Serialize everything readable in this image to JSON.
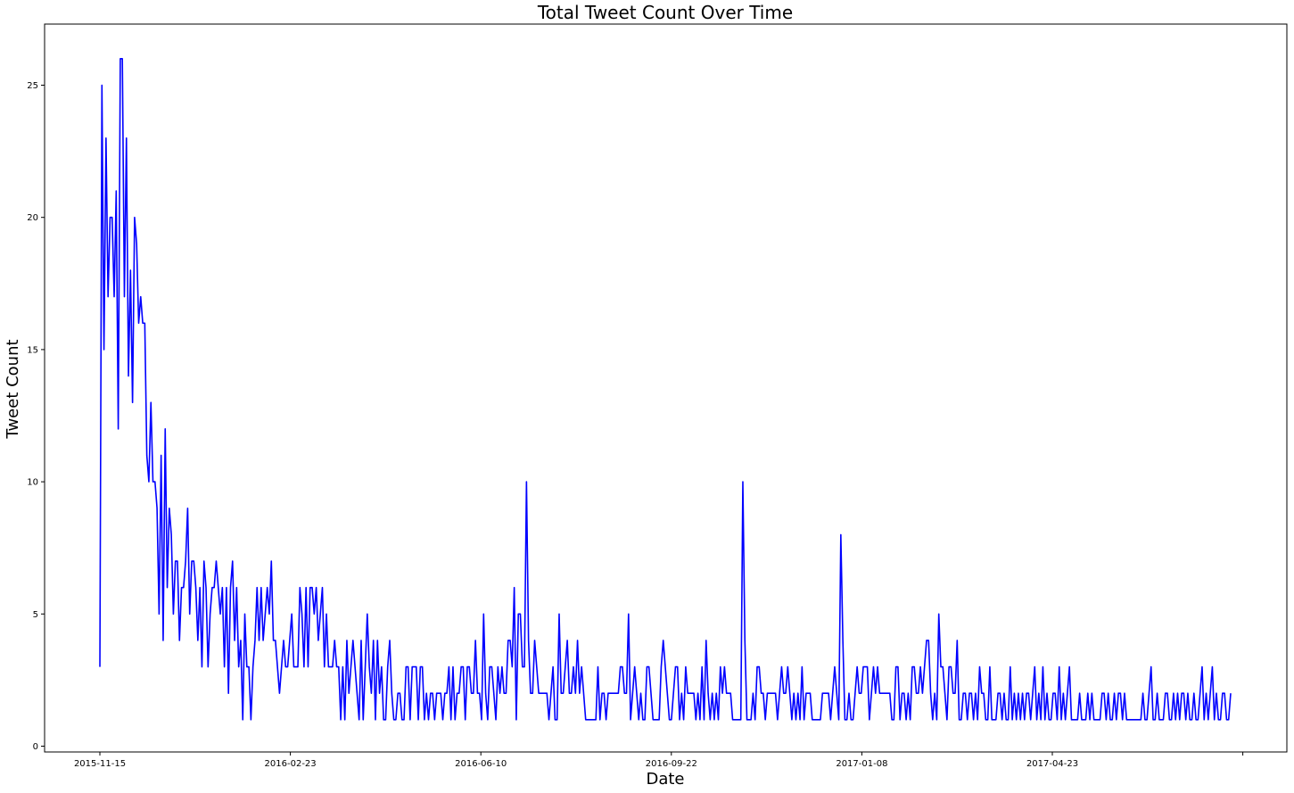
{
  "chart_data": {
    "type": "line",
    "title": "Total Tweet Count Over Time",
    "xlabel": "Date",
    "ylabel": "Tweet Count",
    "line_color": "#0000ff",
    "grid": false,
    "legend": "none",
    "xlim": [
      "2015-11-15",
      "2017-07-31"
    ],
    "ylim": [
      0,
      27
    ],
    "x_ticks": [
      "2015-11-15",
      "2016-02-23",
      "2016-06-10",
      "2016-09-22",
      "2017-01-08",
      "2017-04-23",
      ""
    ],
    "y_ticks": [
      0,
      5,
      10,
      15,
      20,
      25
    ],
    "series": [
      {
        "values": [
          3,
          25,
          15,
          23,
          17,
          20,
          20,
          17,
          21,
          12,
          26,
          26,
          17,
          23,
          14,
          18,
          13,
          20,
          19,
          16,
          17,
          16,
          16,
          11,
          10,
          13,
          10,
          10,
          9,
          5,
          11,
          4,
          12,
          6,
          9,
          8,
          5,
          7,
          7,
          4,
          6,
          6,
          7,
          9,
          5,
          7,
          7,
          6,
          4,
          6,
          3,
          7,
          6,
          3,
          5,
          6,
          6,
          7,
          6,
          5,
          6,
          3,
          6,
          2,
          6,
          7,
          4,
          6,
          3,
          4,
          1,
          5,
          3,
          3,
          1,
          3,
          4,
          6,
          4,
          6,
          4,
          5,
          6,
          5,
          7,
          4,
          4,
          3,
          2,
          3,
          4,
          3,
          3,
          4,
          5,
          3,
          3,
          3,
          6,
          5,
          3,
          6,
          3,
          6,
          6,
          5,
          6,
          4,
          5,
          6,
          3,
          5,
          3,
          3,
          3,
          4,
          3,
          3,
          1,
          3,
          1,
          4,
          2,
          3,
          4,
          3,
          2,
          1,
          4,
          1,
          3,
          5,
          3,
          2,
          4,
          1,
          4,
          2,
          3,
          1,
          1,
          3,
          4,
          2,
          1,
          1,
          2,
          2,
          1,
          1,
          3,
          3,
          1,
          3,
          3,
          3,
          1,
          3,
          3,
          1,
          2,
          1,
          2,
          2,
          1,
          2,
          2,
          2,
          1,
          2,
          2,
          3,
          1,
          3,
          1,
          2,
          2,
          3,
          3,
          1,
          3,
          3,
          2,
          2,
          4,
          2,
          2,
          1,
          5,
          2,
          1,
          3,
          3,
          2,
          1,
          3,
          2,
          3,
          2,
          2,
          4,
          4,
          3,
          6,
          1,
          5,
          5,
          3,
          3,
          10,
          4,
          2,
          2,
          4,
          3,
          2,
          2,
          2,
          2,
          2,
          1,
          2,
          3,
          1,
          1,
          5,
          2,
          2,
          3,
          4,
          2,
          2,
          3,
          2,
          4,
          2,
          3,
          2,
          1,
          1,
          1,
          1,
          1,
          1,
          3,
          1,
          2,
          2,
          1,
          2,
          2,
          2,
          2,
          2,
          2,
          3,
          3,
          2,
          2,
          5,
          1,
          2,
          3,
          2,
          1,
          2,
          1,
          1,
          3,
          3,
          2,
          1,
          1,
          1,
          1,
          3,
          4,
          3,
          2,
          1,
          1,
          2,
          3,
          3,
          1,
          2,
          1,
          3,
          2,
          2,
          2,
          2,
          1,
          2,
          1,
          3,
          1,
          4,
          2,
          1,
          2,
          1,
          2,
          1,
          3,
          2,
          3,
          2,
          2,
          2,
          1,
          1,
          1,
          1,
          1,
          10,
          4,
          1,
          1,
          1,
          2,
          1,
          3,
          3,
          2,
          2,
          1,
          2,
          2,
          2,
          2,
          2,
          1,
          2,
          3,
          2,
          2,
          3,
          2,
          1,
          2,
          1,
          2,
          1,
          3,
          1,
          2,
          2,
          2,
          1,
          1,
          1,
          1,
          1,
          2,
          2,
          2,
          2,
          1,
          2,
          3,
          2,
          1,
          8,
          4,
          1,
          1,
          2,
          1,
          1,
          2,
          3,
          2,
          2,
          3,
          3,
          3,
          1,
          2,
          3,
          2,
          3,
          2,
          2,
          2,
          2,
          2,
          2,
          1,
          1,
          3,
          3,
          1,
          2,
          2,
          1,
          2,
          1,
          3,
          3,
          2,
          2,
          3,
          2,
          3,
          4,
          4,
          2,
          1,
          2,
          1,
          5,
          3,
          3,
          2,
          1,
          3,
          3,
          2,
          2,
          4,
          1,
          1,
          2,
          2,
          1,
          2,
          2,
          1,
          2,
          1,
          3,
          2,
          2,
          1,
          1,
          3,
          1,
          1,
          1,
          2,
          2,
          1,
          2,
          1,
          1,
          3,
          1,
          2,
          1,
          2,
          1,
          2,
          1,
          2,
          2,
          1,
          2,
          3,
          1,
          2,
          1,
          3,
          1,
          2,
          1,
          1,
          2,
          2,
          1,
          3,
          1,
          2,
          1,
          2,
          3,
          1,
          1,
          1,
          1,
          2,
          1,
          1,
          1,
          2,
          1,
          2,
          1,
          1,
          1,
          1,
          2,
          2,
          1,
          2,
          1,
          1,
          2,
          1,
          2,
          2,
          1,
          2,
          1,
          1,
          1,
          1,
          1,
          1,
          1,
          1,
          2,
          1,
          1,
          2,
          3,
          1,
          1,
          2,
          1,
          1,
          1,
          2,
          2,
          1,
          1,
          2,
          1,
          2,
          1,
          2,
          2,
          1,
          2,
          1,
          1,
          2,
          1,
          1,
          2,
          3,
          1,
          2,
          1,
          2,
          3,
          1,
          2,
          1,
          1,
          2,
          2,
          1,
          1,
          2
        ]
      }
    ]
  }
}
